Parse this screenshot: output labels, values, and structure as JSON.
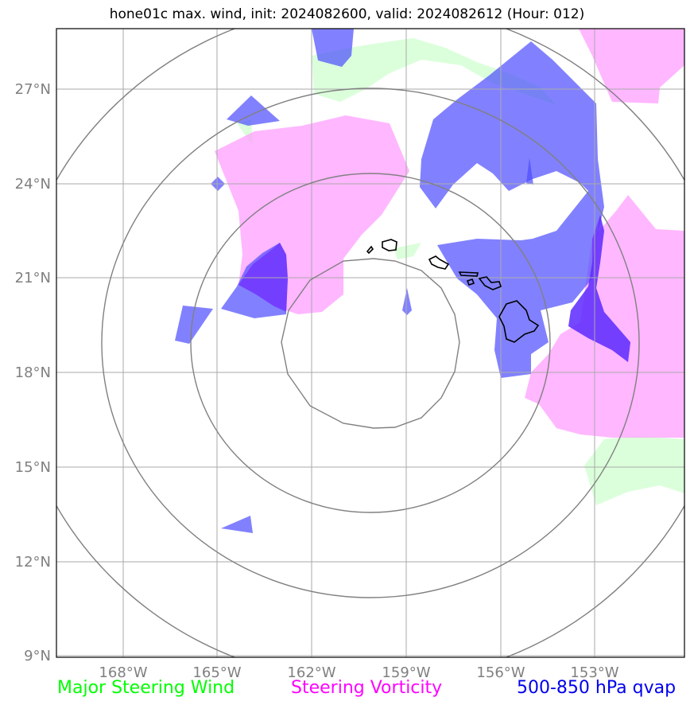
{
  "title": "hone01c max. wind, init: 2024082600, valid: 2024082612 (Hour: 012)",
  "map": {
    "lat_labels": [
      "27°N",
      "24°N",
      "21°N",
      "18°N",
      "15°N",
      "12°N",
      "9°N"
    ],
    "lon_labels": [
      "168°W",
      "165°W",
      "162°W",
      "159°W",
      "156°W",
      "153°W"
    ],
    "range_rings": 4
  },
  "legend": {
    "green": "Major Steering Wind",
    "magenta": "Steering Vorticity",
    "blue": "500-850 hPa qvap"
  },
  "colors": {
    "green": "#00ff00",
    "magenta": "#ff00ff",
    "blue": "#0000ee",
    "green_fill": "#ccffcc",
    "magenta_fill": "#ff99ff",
    "blue_fill": "#4b4bff"
  }
}
